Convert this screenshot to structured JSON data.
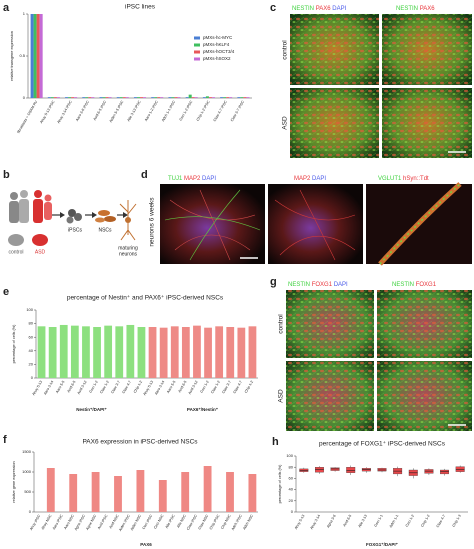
{
  "figure": {
    "panel_labels": [
      "a",
      "b",
      "c",
      "d",
      "e",
      "f",
      "g",
      "h"
    ],
    "b": {
      "groups": [
        "control",
        "ASD"
      ],
      "stages": [
        "iPSCs",
        "NSCs"
      ],
      "neurons": [
        "maturing",
        "neurons"
      ]
    },
    "c": {
      "headers": [
        [
          "NESTIN",
          "PAX6",
          "DAPI"
        ],
        [
          "NESTIN",
          "PAX6"
        ]
      ],
      "rows": [
        "control",
        "ASD"
      ]
    },
    "d": {
      "side": "neurons 6 weeks",
      "headers": [
        [
          "TUJ1",
          "MAP2",
          "DAPI"
        ],
        [
          "MAP2",
          "DAPI"
        ],
        [
          "VGLUT1",
          "hSyn::Tdt"
        ]
      ]
    },
    "g": {
      "headers": [
        [
          "NESTIN",
          "FOXG1",
          "DAPI"
        ],
        [
          "NESTIN",
          "FOXG1"
        ]
      ],
      "rows": [
        "control",
        "ASD"
      ]
    }
  },
  "chart_data": [
    {
      "type": "bar",
      "title": "iPSC lines",
      "ylabel": "relative transgene expression",
      "legend": "upper right",
      "categories": [
        "fibroblasts + OSKM RV",
        "Ahoy 5-13 iPSC",
        "Ahoy 3-14 iPSC",
        "Aaro 3-6 iPSC",
        "Avid 6-5 iPSC",
        "Aiden 5-5 iPSC",
        "Alle 3-13 iPSC",
        "Aaro 1-2 iPSC",
        "Adch 1-1 iPSC",
        "Ceci 1-2 iPSC",
        "Chip 1-2 iPSC",
        "Claw 4-7 iPSC",
        "Claw 3-7 iPSC"
      ],
      "series": [
        {
          "name": "pMXs-hc-MYC",
          "color": "#4a7fd4",
          "values": [
            1,
            0.01,
            0.01,
            0.01,
            0.01,
            0.01,
            0.01,
            0.01,
            0.01,
            0.01,
            0.01,
            0.01,
            0.01
          ]
        },
        {
          "name": "pMXs-hKLF4",
          "color": "#3fbf5f",
          "values": [
            1,
            0.01,
            0.01,
            0.01,
            0.01,
            0.01,
            0.01,
            0.01,
            0.01,
            0.04,
            0.02,
            0.01,
            0.01
          ]
        },
        {
          "name": "pMXs-hOCT3/4",
          "color": "#e8575a",
          "values": [
            1,
            0.01,
            0.01,
            0.01,
            0.01,
            0.01,
            0.01,
            0.01,
            0.01,
            0.01,
            0.01,
            0.01,
            0.01
          ]
        },
        {
          "name": "pMXs-hSOX2",
          "color": "#c46ad6",
          "values": [
            1,
            0.01,
            0.01,
            0.01,
            0.01,
            0.01,
            0.01,
            0.01,
            0.01,
            0.01,
            0.01,
            0.01,
            0.01
          ]
        }
      ],
      "ylim": [
        0,
        1
      ],
      "yticks": [
        0,
        0.5,
        1
      ]
    },
    {
      "type": "bar",
      "layout": "blocks",
      "title": "percentage of Nestin⁺ and PAX6⁺ iPSC-derived NSCs",
      "ylabel": "percentage of cells (%)",
      "categories": [
        "Ahoy 5-13",
        "Aaro 3-14",
        "Aaro 5-5",
        "Avid 6-5",
        "Avid 3-12",
        "Ceci 1-2",
        "Claw 1-2",
        "Claw 3-7",
        "Claw 4-7",
        "Chip 1-2"
      ],
      "series": [
        {
          "name": "Nestin⁺/DAPI⁺",
          "color": "#8de07f",
          "values": [
            76,
            75,
            78,
            77,
            76,
            75,
            77,
            76,
            78,
            75
          ]
        },
        {
          "name": "PAX6⁺/Nestin⁺",
          "color": "#ee8a86",
          "values": [
            75,
            74,
            76,
            75,
            77,
            74,
            76,
            75,
            74,
            76
          ]
        }
      ],
      "ylim": [
        0,
        100
      ],
      "yticks": [
        0,
        20,
        40,
        60,
        80,
        100
      ]
    },
    {
      "type": "bar",
      "title": "PAX6 expression in iPSC-derived NSCs",
      "ylabel": "relative gene expression",
      "xlabel": "PAX6",
      "color": "#ef8884",
      "categories": [
        "Ahoy iPSC",
        "Ahoy NSC",
        "Aaro iPSC",
        "Aaro NSC",
        "Agne iPSC",
        "Agne NSC",
        "Avid iPSC",
        "Avid NSC",
        "Aiden iPSC",
        "Aiden NSC",
        "Ceci iPSC",
        "Ceci NSC",
        "Alle iPSC",
        "Alle NSC",
        "Claw iPSC",
        "Claw NSC",
        "Chip iPSC",
        "Chip NSC",
        "Adch iPSC",
        "Adch NSC"
      ],
      "values": [
        1,
        1100,
        1,
        950,
        1,
        1000,
        1,
        900,
        1,
        1050,
        1,
        800,
        1,
        1000,
        1,
        1150,
        1,
        1000,
        1,
        950
      ],
      "ylim": [
        0,
        1500
      ],
      "yticks": [
        0,
        500,
        1000,
        1500
      ]
    },
    {
      "type": "box",
      "title": "percentage of FOXG1⁺ iPSC-derived NSCs",
      "ylabel": "percentage of cells (%)",
      "xlabel": "FOXG1⁺/DAPI⁺",
      "color": "#e8474a",
      "categories": [
        "Ahoy 5-13",
        "Ahoy 3-14",
        "Agna 3-6",
        "Avid 6-5",
        "Alle 3-13",
        "Ceci 1-1",
        "Adch 1-1",
        "Ceci 1-2",
        "Chip 1-2",
        "Claw 4-7",
        "Chip 1-3"
      ],
      "boxes": [
        {
          "min": 70,
          "q1": 72,
          "median": 74,
          "q3": 77,
          "max": 79
        },
        {
          "min": 68,
          "q1": 71,
          "median": 76,
          "q3": 80,
          "max": 82
        },
        {
          "min": 72,
          "q1": 74,
          "median": 77,
          "q3": 79,
          "max": 80
        },
        {
          "min": 66,
          "q1": 70,
          "median": 74,
          "q3": 80,
          "max": 83
        },
        {
          "min": 70,
          "q1": 73,
          "median": 76,
          "q3": 78,
          "max": 80
        },
        {
          "min": 71,
          "q1": 73,
          "median": 75,
          "q3": 78,
          "max": 79
        },
        {
          "min": 64,
          "q1": 68,
          "median": 73,
          "q3": 78,
          "max": 81
        },
        {
          "min": 60,
          "q1": 65,
          "median": 70,
          "q3": 75,
          "max": 78
        },
        {
          "min": 66,
          "q1": 69,
          "median": 73,
          "q3": 76,
          "max": 78
        },
        {
          "min": 65,
          "q1": 68,
          "median": 72,
          "q3": 75,
          "max": 77
        },
        {
          "min": 70,
          "q1": 72,
          "median": 76,
          "q3": 81,
          "max": 83
        }
      ],
      "ylim": [
        0,
        100
      ],
      "yticks": [
        0,
        20,
        40,
        60,
        80,
        100
      ]
    }
  ]
}
